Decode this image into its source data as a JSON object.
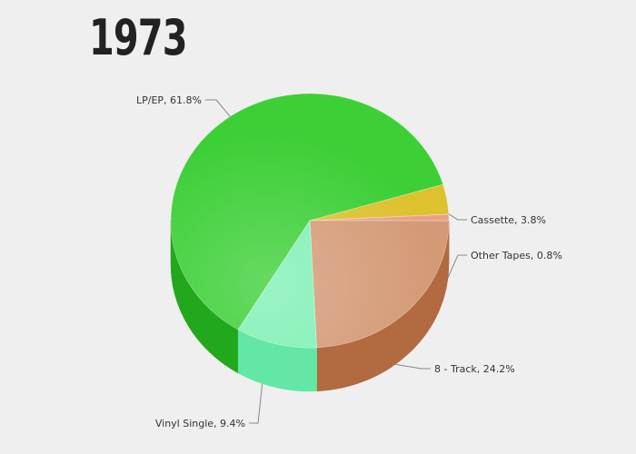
{
  "title": "1973",
  "chart_data": {
    "type": "pie",
    "style": "3d",
    "slices": [
      {
        "label": "LP/EP",
        "value": 61.8,
        "color": "#3ccf36",
        "side_color": "#22a81c",
        "label_text": "LP/EP, 61.8%"
      },
      {
        "label": "Cassette",
        "value": 3.8,
        "color": "#dec12e",
        "side_color": "#b99a1f",
        "label_text": "Cassette, 3.8%"
      },
      {
        "label": "Other Tapes",
        "value": 0.8,
        "color": "#e7a089",
        "side_color": "#c47a64",
        "label_text": "Other Tapes, 0.8%"
      },
      {
        "label": "8 - Track",
        "value": 24.2,
        "color": "#d49a76",
        "side_color": "#b26a40",
        "label_text": "8 - Track, 24.2%"
      },
      {
        "label": "Vinyl Single",
        "value": 9.4,
        "color": "#7ff0b5",
        "side_color": "#63e7a6",
        "label_text": "Vinyl Single, 9.4%"
      }
    ]
  }
}
